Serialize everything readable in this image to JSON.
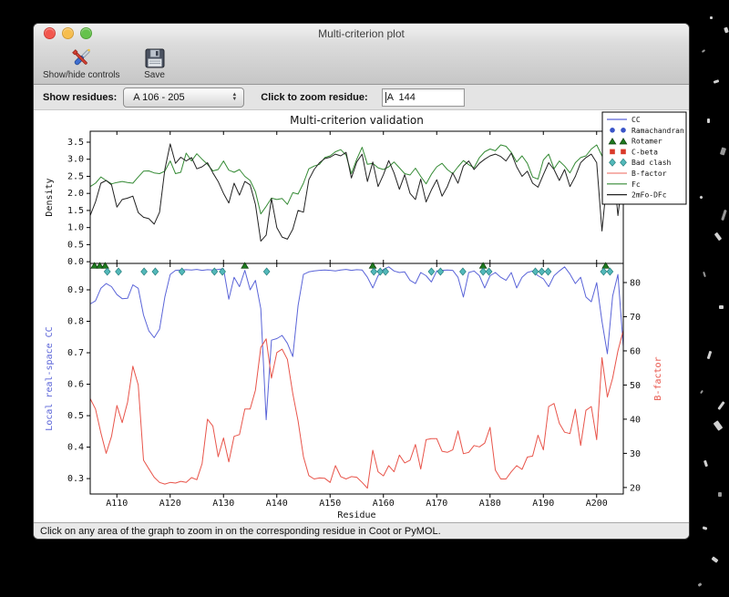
{
  "window": {
    "title": "Multi-criterion plot"
  },
  "toolbar": {
    "buttons": [
      {
        "label": "Show/hide controls",
        "icon": "tools-icon"
      },
      {
        "label": "Save",
        "icon": "save-icon"
      }
    ]
  },
  "controls": {
    "show_residues_label": "Show residues:",
    "residue_range_value": "A 106 - 205",
    "zoom_residue_label": "Click to zoom residue:",
    "zoom_residue_value": "A  144"
  },
  "status_bar": {
    "text": "Click on any area of the graph to zoom in on the corresponding residue in Coot or PyMOL."
  },
  "chart_data": {
    "type": "line",
    "title": "Multi-criterion validation",
    "xlabel": "Residue",
    "x_start": 105,
    "x_step": 1,
    "x_lim": [
      105,
      205
    ],
    "x_ticks": [
      {
        "res": 110,
        "label": "A110"
      },
      {
        "res": 120,
        "label": "A120"
      },
      {
        "res": 130,
        "label": "A130"
      },
      {
        "res": 140,
        "label": "A140"
      },
      {
        "res": 150,
        "label": "A150"
      },
      {
        "res": 160,
        "label": "A160"
      },
      {
        "res": 170,
        "label": "A170"
      },
      {
        "res": 180,
        "label": "A180"
      },
      {
        "res": 190,
        "label": "A190"
      },
      {
        "res": 200,
        "label": "A200"
      }
    ],
    "density_plot": {
      "ylabel": "Density",
      "ylim": [
        -0.05,
        3.82
      ],
      "yticks": [
        {
          "v": 0.0,
          "label": "0.0"
        },
        {
          "v": 0.5,
          "label": "0.5"
        },
        {
          "v": 1.0,
          "label": "1.0"
        },
        {
          "v": 1.5,
          "label": "1.5"
        },
        {
          "v": 2.0,
          "label": "2.0"
        },
        {
          "v": 2.5,
          "label": "2.5"
        },
        {
          "v": 3.0,
          "label": "3.0"
        },
        {
          "v": 3.5,
          "label": "3.5"
        }
      ],
      "series": [
        {
          "name": "Fc",
          "color": "#348a34",
          "values": [
            2.2,
            2.3,
            2.48,
            2.38,
            2.28,
            2.32,
            2.35,
            2.32,
            2.3,
            2.48,
            2.65,
            2.66,
            2.6,
            2.58,
            2.65,
            2.95,
            2.58,
            2.62,
            3.18,
            2.95,
            3.16,
            3.0,
            2.85,
            2.66,
            2.7,
            2.95,
            2.68,
            2.62,
            2.7,
            2.5,
            2.38,
            2.05,
            1.4,
            1.62,
            1.86,
            1.82,
            1.85,
            1.68,
            2.02,
            1.98,
            2.3,
            2.72,
            2.8,
            2.85,
            3.05,
            3.1,
            3.22,
            3.28,
            3.12,
            2.58,
            3.0,
            3.35,
            2.85,
            2.88,
            2.75,
            2.7,
            2.78,
            2.92,
            2.75,
            2.58,
            2.54,
            2.74,
            2.5,
            2.28,
            2.56,
            2.78,
            2.88,
            2.7,
            2.58,
            2.78,
            2.96,
            2.84,
            2.75,
            3.05,
            3.22,
            3.3,
            3.25,
            3.42,
            3.38,
            3.2,
            2.92,
            3.1,
            2.88,
            2.48,
            2.42,
            2.98,
            3.15,
            2.72,
            2.95,
            2.8,
            2.6,
            2.9,
            3.05,
            3.1,
            3.3,
            3.42,
            3.1,
            3.35,
            3.18,
            2.92,
            2.95
          ]
        },
        {
          "name": "2mFo-DFc",
          "color": "#222222",
          "values": [
            1.35,
            1.75,
            2.3,
            2.38,
            2.25,
            1.6,
            1.82,
            1.86,
            1.92,
            1.44,
            1.3,
            1.26,
            1.1,
            1.45,
            2.7,
            3.45,
            2.88,
            3.06,
            2.95,
            3.05,
            2.72,
            2.78,
            2.9,
            2.6,
            2.35,
            2.0,
            1.72,
            2.3,
            1.95,
            2.35,
            2.25,
            1.68,
            0.6,
            0.78,
            1.85,
            1.0,
            0.72,
            0.66,
            0.95,
            1.5,
            1.45,
            2.4,
            2.7,
            2.9,
            3.02,
            3.06,
            3.15,
            3.1,
            3.2,
            2.45,
            2.92,
            3.15,
            2.35,
            2.92,
            2.2,
            2.55,
            2.96,
            2.6,
            2.12,
            2.55,
            2.0,
            1.82,
            2.42,
            1.75,
            2.1,
            2.4,
            1.92,
            2.2,
            2.6,
            2.3,
            2.8,
            2.95,
            2.7,
            2.88,
            3.0,
            3.1,
            3.15,
            3.08,
            2.95,
            3.18,
            2.78,
            2.5,
            2.65,
            2.3,
            2.18,
            2.55,
            2.9,
            2.7,
            2.38,
            2.7,
            2.2,
            2.5,
            2.9,
            3.05,
            3.15,
            2.9,
            0.9,
            2.5,
            3.0,
            1.35,
            2.6
          ]
        }
      ]
    },
    "cc_plot": {
      "ylabel_left": "Local real-space CC",
      "ylabel_left_color": "#5a64d8",
      "ylabel_right": "B-factor",
      "ylabel_right_color": "#e8544a",
      "cc_ylim": [
        0.251,
        0.984
      ],
      "b_ylim": [
        18.1,
        85.6
      ],
      "cc_yticks": [
        {
          "v": 0.3,
          "label": "0.3"
        },
        {
          "v": 0.4,
          "label": "0.4"
        },
        {
          "v": 0.5,
          "label": "0.5"
        },
        {
          "v": 0.6,
          "label": "0.6"
        },
        {
          "v": 0.7,
          "label": "0.7"
        },
        {
          "v": 0.8,
          "label": "0.8"
        },
        {
          "v": 0.9,
          "label": "0.9"
        }
      ],
      "b_yticks": [
        {
          "v": 20,
          "label": "20"
        },
        {
          "v": 30,
          "label": "30"
        },
        {
          "v": 40,
          "label": "40"
        },
        {
          "v": 50,
          "label": "50"
        },
        {
          "v": 60,
          "label": "60"
        },
        {
          "v": 70,
          "label": "70"
        },
        {
          "v": 80,
          "label": "80"
        }
      ],
      "series": [
        {
          "name": "CC",
          "axis": "cc",
          "color": "#5a64d8",
          "values": [
            0.855,
            0.865,
            0.905,
            0.92,
            0.91,
            0.885,
            0.872,
            0.873,
            0.916,
            0.905,
            0.82,
            0.77,
            0.748,
            0.775,
            0.877,
            0.949,
            0.962,
            0.963,
            0.964,
            0.963,
            0.965,
            0.962,
            0.964,
            0.963,
            0.965,
            0.967,
            0.87,
            0.94,
            0.91,
            0.962,
            0.9,
            0.93,
            0.84,
            0.487,
            0.74,
            0.745,
            0.755,
            0.73,
            0.688,
            0.85,
            0.949,
            0.957,
            0.96,
            0.962,
            0.963,
            0.962,
            0.96,
            0.963,
            0.965,
            0.962,
            0.964,
            0.963,
            0.94,
            0.906,
            0.945,
            0.965,
            0.973,
            0.96,
            0.955,
            0.957,
            0.93,
            0.92,
            0.955,
            0.945,
            0.925,
            0.96,
            0.962,
            0.963,
            0.962,
            0.94,
            0.877,
            0.955,
            0.96,
            0.945,
            0.906,
            0.945,
            0.955,
            0.94,
            0.93,
            0.955,
            0.906,
            0.94,
            0.955,
            0.96,
            0.945,
            0.935,
            0.91,
            0.945,
            0.96,
            0.973,
            0.95,
            0.92,
            0.94,
            0.877,
            0.862,
            0.923,
            0.8,
            0.697,
            0.88,
            0.949,
            0.72
          ]
        },
        {
          "name": "B-factor",
          "axis": "b",
          "color": "#e8544a",
          "values": [
            46,
            43,
            36,
            30,
            35,
            44,
            39,
            45,
            55.5,
            50,
            28,
            25.5,
            23,
            21.5,
            21,
            21.5,
            21.3,
            21.8,
            21.5,
            22.9,
            22.3,
            27,
            40,
            38,
            29,
            34.5,
            27.5,
            35,
            35.5,
            43,
            43,
            48.5,
            61,
            63.5,
            52,
            59.5,
            60.5,
            57.5,
            47.5,
            39.5,
            29,
            23.5,
            22.5,
            22.8,
            22.7,
            21.5,
            26.4,
            23.2,
            22.5,
            23.2,
            23.0,
            21.5,
            19.8,
            30.9,
            24.6,
            23.4,
            26.4,
            24.6,
            29.5,
            27.2,
            28.0,
            32.6,
            25.4,
            34.0,
            34.3,
            34.3,
            30.6,
            30.3,
            31.0,
            36.6,
            29.9,
            30.3,
            32.3,
            31.9,
            33.0,
            37.6,
            25.1,
            22.5,
            22.5,
            24.6,
            26.4,
            25.3,
            28.9,
            29.2,
            35.3,
            31.0,
            43.7,
            44.6,
            38.8,
            36.2,
            35.8,
            42.9,
            32.3,
            42.6,
            43.7,
            34.0,
            58.0,
            46.5,
            52.0,
            60.0,
            66.0
          ]
        }
      ],
      "markers": [
        {
          "name": "Rotamer",
          "shape": "triangle",
          "fill": "#1e7a1e",
          "edge": "#0b3b0b",
          "residues": [
            105.8,
            106.8,
            107.8,
            134,
            158,
            178.7,
            201.7
          ]
        },
        {
          "name": "Bad clash",
          "shape": "diamond",
          "fill": "#53b8ba",
          "edge": "#26807d",
          "residues": [
            108.2,
            110.3,
            115.1,
            117.2,
            122.2,
            128.3,
            129.8,
            138.1,
            158.2,
            159.4,
            160.4,
            169,
            170.7,
            174.9,
            178.7,
            179.8,
            188.5,
            189.7,
            190.9,
            201.3,
            202.5
          ]
        }
      ]
    },
    "legend": {
      "position": "top-right",
      "entries": [
        {
          "label": "CC",
          "type": "line",
          "color": "#5a64d8"
        },
        {
          "label": "Ramachandran",
          "type": "circle",
          "color": "#3a55c8"
        },
        {
          "label": "Rotamer",
          "type": "triangle",
          "color": "#1e7a1e"
        },
        {
          "label": "C-beta",
          "type": "square",
          "color": "#d93a2a"
        },
        {
          "label": "Bad clash",
          "type": "diamond",
          "color": "#53b8ba"
        },
        {
          "label": "B-factor",
          "type": "line",
          "color": "#f0857a"
        },
        {
          "label": "Fc",
          "type": "line",
          "color": "#348a34"
        },
        {
          "label": "2mFo-DFc",
          "type": "line",
          "color": "#222222"
        }
      ]
    }
  }
}
